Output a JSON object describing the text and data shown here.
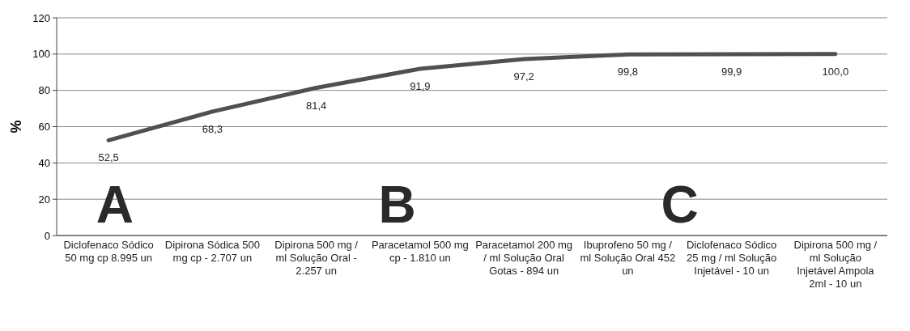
{
  "chart_data": {
    "type": "line",
    "ylabel": "%",
    "categories": [
      "Diclofenaco Sódico 50 mg cp 8.995 un",
      "Dipirona Sódica 500 mg cp - 2.707 un",
      "Dipirona 500 mg / ml Solução Oral - 2.257 un",
      "Paracetamol 500 mg cp - 1.810 un",
      "Paracetamol 200 mg / ml Solução Oral Gotas - 894 un",
      "Ibuprofeno 50 mg / ml Solução Oral 452 un",
      "Diclofenaco Sódico 25 mg / ml Solução Injetável - 10 un",
      "Dipirona 500 mg / ml Solução Injetável Ampola 2ml - 10 un"
    ],
    "series": [
      {
        "color": "#505050",
        "values": [
          52.5,
          68.3,
          81.4,
          91.9,
          97.2,
          99.8,
          99.9,
          100.0
        ],
        "value_labels": [
          "52,5",
          "68,3",
          "81,4",
          "91,9",
          "97,2",
          "99,8",
          "99,9",
          "100,0"
        ]
      }
    ],
    "ylim": [
      0,
      120
    ],
    "yticks": [
      0,
      20,
      40,
      60,
      80,
      100,
      120
    ],
    "grid": "y",
    "marker": "none",
    "line_style": "solid",
    "annotations": [
      "A",
      "B",
      "C"
    ]
  }
}
